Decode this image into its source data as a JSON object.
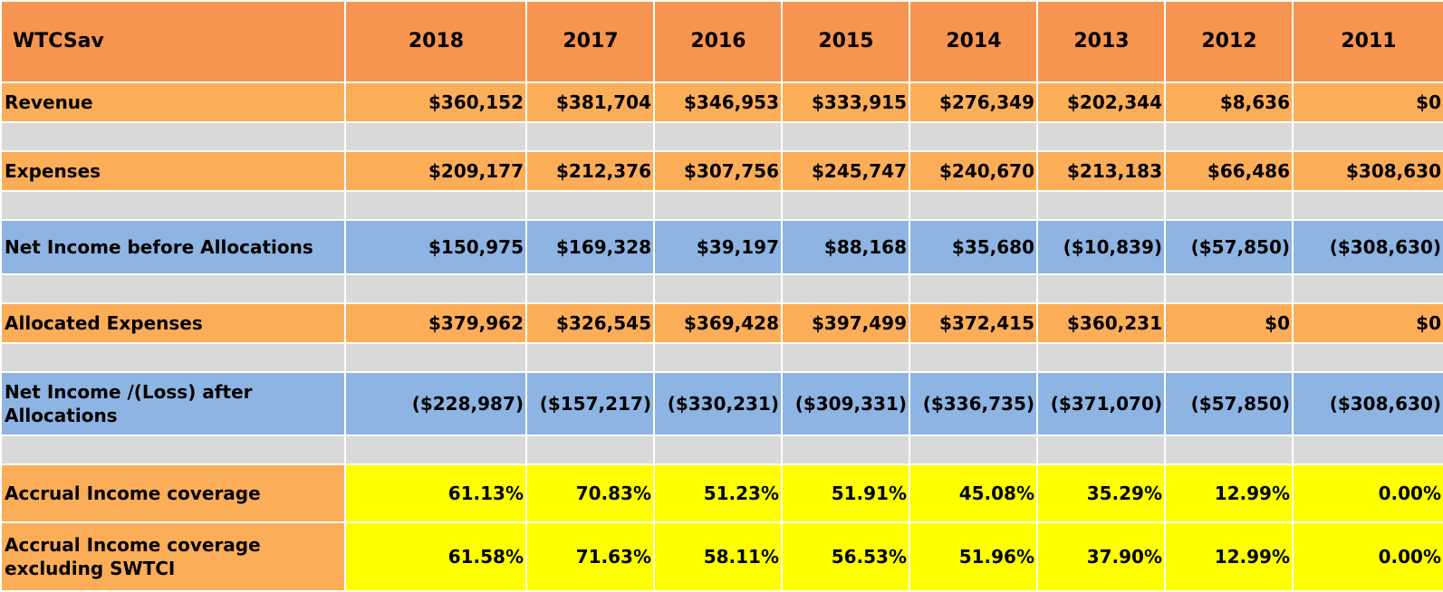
{
  "table": {
    "title": "WTCSav",
    "years": [
      "2018",
      "2017",
      "2016",
      "2015",
      "2014",
      "2013",
      "2012",
      "2011"
    ],
    "rows": [
      {
        "kind": "orange",
        "label": "Revenue",
        "values": [
          "$360,152",
          "$381,704",
          "$346,953",
          "$333,915",
          "$276,349",
          "$202,344",
          "$8,636",
          "$0"
        ]
      },
      {
        "kind": "gap"
      },
      {
        "kind": "orange",
        "label": "Expenses",
        "values": [
          "$209,177",
          "$212,376",
          "$307,756",
          "$245,747",
          "$240,670",
          "$213,183",
          "$66,486",
          "$308,630"
        ]
      },
      {
        "kind": "gap"
      },
      {
        "kind": "blue",
        "label": "Net Income before Allocations",
        "values": [
          "$150,975",
          "$169,328",
          "$39,197",
          "$88,168",
          "$35,680",
          "($10,839)",
          "($57,850)",
          "($308,630)"
        ]
      },
      {
        "kind": "gap"
      },
      {
        "kind": "orange",
        "label": "Allocated Expenses",
        "values": [
          "$379,962",
          "$326,545",
          "$369,428",
          "$397,499",
          "$372,415",
          "$360,231",
          "$0",
          "$0"
        ]
      },
      {
        "kind": "gap"
      },
      {
        "kind": "blue",
        "label": "Net Income /(Loss) after Allocations",
        "values": [
          "($228,987)",
          "($157,217)",
          "($330,231)",
          "($309,331)",
          "($336,735)",
          "($371,070)",
          "($57,850)",
          "($308,630)"
        ]
      },
      {
        "kind": "gap"
      },
      {
        "kind": "yellow",
        "label": "Accrual Income coverage",
        "values": [
          "61.13%",
          "70.83%",
          "51.23%",
          "51.91%",
          "45.08%",
          "35.29%",
          "12.99%",
          "0.00%"
        ]
      },
      {
        "kind": "yellow",
        "label": "Accrual Income coverage excluding SWTCI",
        "values": [
          "61.58%",
          "71.63%",
          "58.11%",
          "56.53%",
          "51.96%",
          "37.90%",
          "12.99%",
          "0.00%"
        ]
      }
    ]
  },
  "colors": {
    "header": "#f79550",
    "orange_row": "#fcad58",
    "blue_row": "#8db4e2",
    "gap_row": "#d9d9d9",
    "highlight": "#ffff00"
  }
}
